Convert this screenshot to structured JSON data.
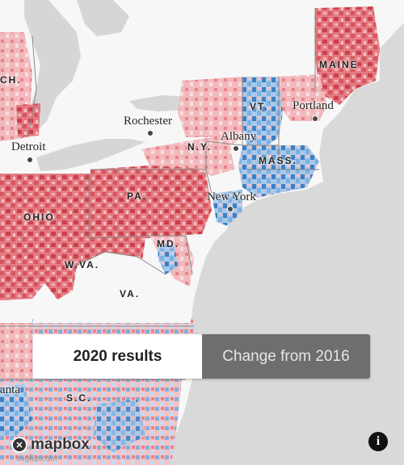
{
  "map": {
    "colors": {
      "land": "#f7f7f7",
      "water": "#d9d9d9",
      "lake": "#d6d6d6",
      "rep_strong": "#d6545e",
      "rep_mid": "#e8838a",
      "rep_light": "#f4c3c6",
      "dem_strong": "#3f7fc4",
      "dem_mid": "#7fb0de",
      "dem_light": "#c3dbf1",
      "border": "#888888"
    },
    "state_labels": {
      "mich": "CH.",
      "maine": "MAINE",
      "vt": "VT.",
      "ny": "N.Y.",
      "mass": "MASS.",
      "pa": "PA.",
      "ohio": "OHIO",
      "md": "MD.",
      "wva": "W.VA.",
      "va": "VA.",
      "sc": "S.C."
    },
    "cities": {
      "rochester": "Rochester",
      "albany": "Albany",
      "portland": "Portland",
      "detroit": "Detroit",
      "newyork": "New York",
      "atlanta": "anta"
    }
  },
  "toggle": {
    "option_a": "2020 results",
    "option_b": "Change from 2016"
  },
  "brand": {
    "logo_text": "mapbox",
    "logo_icon": "mapbox-logo-icon",
    "info_icon": "info-icon",
    "info_glyph": "i",
    "watermark": "imgflip.com"
  }
}
